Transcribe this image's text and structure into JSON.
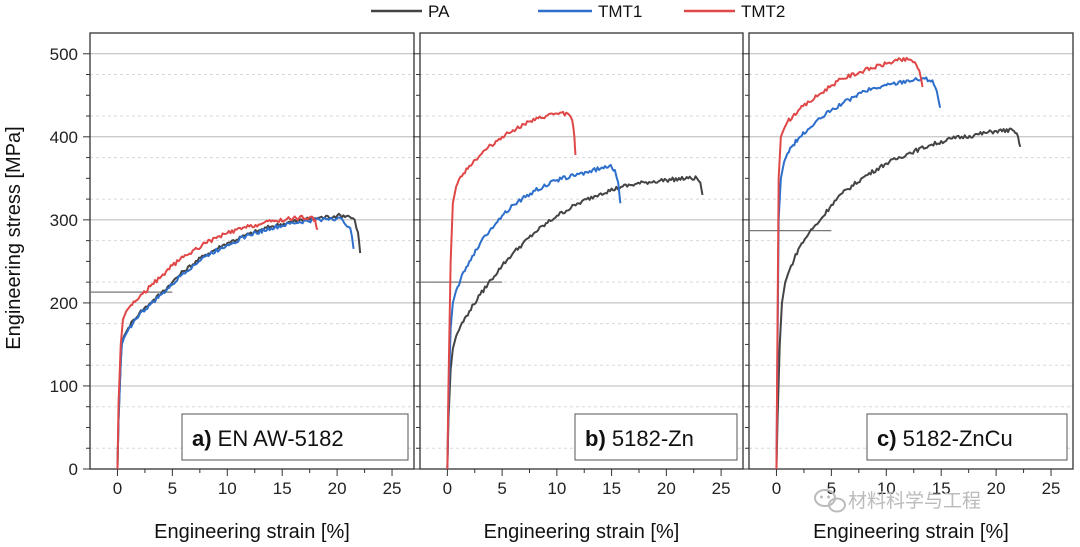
{
  "chart_data": {
    "type": "line",
    "legend": {
      "placement": "top-center",
      "entries": [
        {
          "name": "PA",
          "color": "#444444"
        },
        {
          "name": "TMT1",
          "color": "#2e6fcc"
        },
        {
          "name": "TMT2",
          "color": "#e04848"
        }
      ]
    },
    "ylabel": "Engineering stress [MPa]",
    "xlabel": "Engineering strain [%]",
    "ylim": [
      0,
      525
    ],
    "xlim": [
      -2.5,
      27
    ],
    "yticks": [
      0,
      100,
      200,
      300,
      400,
      500
    ],
    "xticks": [
      0,
      5,
      10,
      15,
      20,
      25
    ],
    "grid": "horizontal",
    "panels": [
      {
        "id": "a",
        "label_prefix": "a)",
        "label_text": "EN AW-5182",
        "yield_marker": {
          "value": 213,
          "x_range": [
            -2.5,
            5
          ]
        },
        "series": [
          {
            "name": "PA",
            "color": "#444444",
            "x": [
              0,
              0.1,
              0.3,
              0.4,
              0.6,
              1,
              1.5,
              2,
              3,
              4,
              5,
              6,
              8,
              10,
              12,
              14,
              16,
              18,
              20,
              21,
              21.6,
              21.9,
              22.1
            ],
            "y": [
              0,
              60,
              130,
              152,
              160,
              170,
              180,
              188,
              200,
              212,
              225,
              238,
              258,
              272,
              283,
              292,
              298,
              302,
              305,
              305,
              300,
              285,
              260
            ]
          },
          {
            "name": "TMT1",
            "color": "#2e6fcc",
            "x": [
              0,
              0.1,
              0.3,
              0.4,
              0.6,
              1,
              1.5,
              2,
              3,
              4,
              5,
              6,
              8,
              10,
              12,
              14,
              16,
              18,
              19.5,
              20.5,
              21.2,
              21.5
            ],
            "y": [
              0,
              60,
              128,
              150,
              158,
              168,
              178,
              186,
              198,
              210,
              222,
              236,
              256,
              270,
              282,
              290,
              296,
              300,
              302,
              300,
              290,
              265
            ]
          },
          {
            "name": "TMT2",
            "color": "#e04848",
            "x": [
              0,
              0.1,
              0.3,
              0.5,
              0.8,
              1.2,
              2,
              3,
              4,
              5,
              6,
              8,
              10,
              12,
              14,
              16,
              17.5,
              18,
              18.2
            ],
            "y": [
              0,
              80,
              150,
              180,
              190,
              197,
              207,
              220,
              232,
              245,
              255,
              272,
              284,
              292,
              298,
              302,
              303,
              300,
              288
            ]
          }
        ]
      },
      {
        "id": "b",
        "label_prefix": "b)",
        "label_text": "5182-Zn",
        "yield_marker": {
          "value": 225,
          "x_range": [
            -2.5,
            5
          ]
        },
        "series": [
          {
            "name": "PA",
            "color": "#444444",
            "x": [
              0,
              0.1,
              0.3,
              0.5,
              0.8,
              1.2,
              2,
              3,
              4,
              5,
              6,
              8,
              10,
              12,
              14,
              16,
              18,
              20,
              22,
              22.8,
              23.1,
              23.3
            ],
            "y": [
              0,
              60,
              120,
              145,
              160,
              172,
              190,
              210,
              228,
              245,
              260,
              285,
              305,
              320,
              332,
              340,
              345,
              348,
              350,
              350,
              345,
              330
            ]
          },
          {
            "name": "TMT1",
            "color": "#2e6fcc",
            "x": [
              0,
              0.1,
              0.3,
              0.5,
              0.8,
              1.2,
              2,
              3,
              4,
              5,
              6,
              8,
              10,
              12,
              14,
              14.8,
              15.3,
              15.6,
              15.8
            ],
            "y": [
              0,
              80,
              170,
              200,
              215,
              228,
              250,
              272,
              290,
              305,
              318,
              335,
              348,
              355,
              362,
              365,
              360,
              345,
              320
            ]
          },
          {
            "name": "TMT2",
            "color": "#e04848",
            "x": [
              0,
              0.1,
              0.3,
              0.5,
              0.8,
              1.2,
              2,
              3,
              4,
              5,
              6,
              7,
              8,
              9,
              10,
              11,
              11.4,
              11.6,
              11.7
            ],
            "y": [
              0,
              100,
              250,
              320,
              340,
              352,
              365,
              378,
              390,
              400,
              408,
              415,
              420,
              425,
              428,
              428,
              420,
              400,
              378
            ]
          }
        ]
      },
      {
        "id": "c",
        "label_prefix": "c)",
        "label_text": "5182-ZnCu",
        "yield_marker": {
          "value": 287,
          "x_range": [
            -2.5,
            5
          ]
        },
        "series": [
          {
            "name": "PA",
            "color": "#444444",
            "x": [
              0,
              0.1,
              0.3,
              0.5,
              0.8,
              1.2,
              2,
              3,
              4,
              5,
              6,
              8,
              10,
              12,
              14,
              16,
              18,
              20,
              21.5,
              22,
              22.2
            ],
            "y": [
              0,
              60,
              150,
              200,
              225,
              240,
              265,
              285,
              300,
              318,
              332,
              352,
              368,
              380,
              390,
              398,
              402,
              407,
              408,
              400,
              388
            ]
          },
          {
            "name": "TMT1",
            "color": "#2e6fcc",
            "x": [
              0,
              0.1,
              0.2,
              0.4,
              0.7,
              1,
              1.5,
              2,
              3,
              4,
              5,
              6,
              8,
              10,
              12,
              13.5,
              14.2,
              14.6,
              14.9
            ],
            "y": [
              0,
              150,
              300,
              350,
              370,
              380,
              390,
              398,
              410,
              422,
              432,
              440,
              455,
              462,
              468,
              470,
              468,
              455,
              435
            ]
          },
          {
            "name": "TMT2",
            "color": "#e04848",
            "x": [
              0,
              0.1,
              0.2,
              0.4,
              0.7,
              1,
              1.5,
              2,
              3,
              4,
              5,
              6,
              8,
              10,
              11,
              12,
              12.6,
              13,
              13.3
            ],
            "y": [
              0,
              180,
              350,
              400,
              410,
              418,
              425,
              432,
              442,
              452,
              462,
              470,
              480,
              488,
              492,
              493,
              490,
              480,
              460
            ]
          }
        ]
      }
    ]
  },
  "watermark": {
    "text": "材料科学与工程",
    "icon": "wechat-icon"
  }
}
